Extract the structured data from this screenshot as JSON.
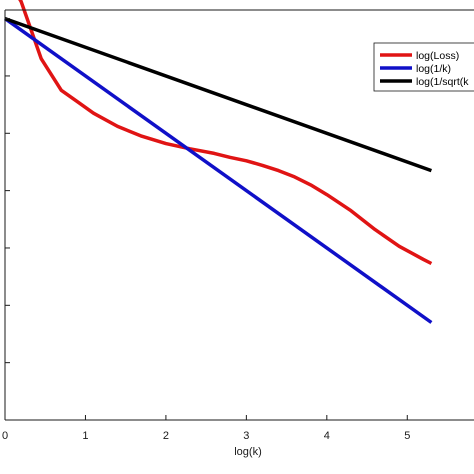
{
  "chart_data": {
    "type": "line",
    "title": "",
    "xlabel": "log(k)",
    "ylabel": "",
    "xlim": [
      0,
      5.5
    ],
    "ylim": [
      -7,
      0.15
    ],
    "x_ticks": [
      0,
      1,
      2,
      3,
      4,
      5
    ],
    "y_ticks": [
      -6,
      -5,
      -4,
      -3,
      -2,
      -1,
      0
    ],
    "grid": false,
    "legend_position": "top-right",
    "series": [
      {
        "name": "log(Loss)",
        "color": "#e01414",
        "x": [
          0,
          0.2,
          0.45,
          0.7,
          0.9,
          1.1,
          1.4,
          1.7,
          2.0,
          2.3,
          2.6,
          2.8,
          3.0,
          3.2,
          3.4,
          3.6,
          3.8,
          4.0,
          4.3,
          4.6,
          4.9,
          5.2,
          5.3
        ],
        "y": [
          0.75,
          0.3,
          -0.7,
          -1.25,
          -1.45,
          -1.65,
          -1.88,
          -2.05,
          -2.18,
          -2.27,
          -2.35,
          -2.42,
          -2.48,
          -2.56,
          -2.65,
          -2.76,
          -2.9,
          -3.07,
          -3.35,
          -3.68,
          -3.97,
          -4.2,
          -4.27
        ]
      },
      {
        "name": "log(1/k)",
        "color": "#1010c8",
        "x": [
          0,
          5.3
        ],
        "y": [
          0,
          -5.3
        ]
      },
      {
        "name": "log(1/sqrt(k",
        "color": "#000000",
        "x": [
          0,
          5.3
        ],
        "y": [
          0,
          -2.65
        ]
      }
    ]
  }
}
